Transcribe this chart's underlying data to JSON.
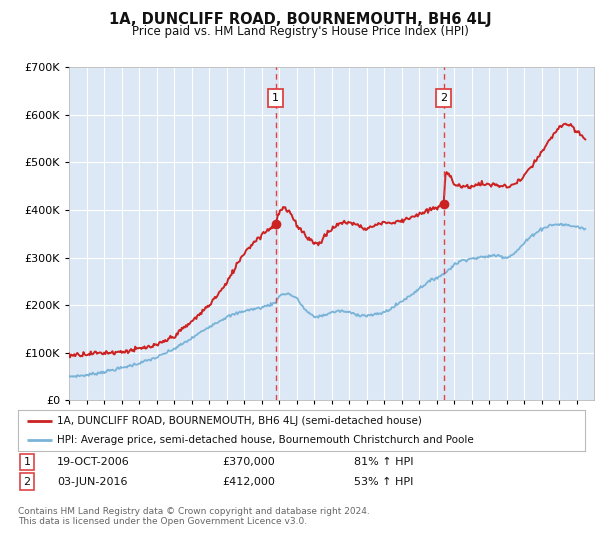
{
  "title": "1A, DUNCLIFF ROAD, BOURNEMOUTH, BH6 4LJ",
  "subtitle": "Price paid vs. HM Land Registry's House Price Index (HPI)",
  "background_color": "#ffffff",
  "plot_bg_color": "#dce8f5",
  "marker1_x": 2006.8,
  "marker1_price": 370000,
  "marker2_x": 2016.42,
  "marker2_price": 412000,
  "legend_line1": "1A, DUNCLIFF ROAD, BOURNEMOUTH, BH6 4LJ (semi-detached house)",
  "legend_line2": "HPI: Average price, semi-detached house, Bournemouth Christchurch and Poole",
  "table_row1": [
    "1",
    "19-OCT-2006",
    "£370,000",
    "81% ↑ HPI"
  ],
  "table_row2": [
    "2",
    "03-JUN-2016",
    "£412,000",
    "53% ↑ HPI"
  ],
  "footer": "Contains HM Land Registry data © Crown copyright and database right 2024.\nThis data is licensed under the Open Government Licence v3.0.",
  "xmin": 1995,
  "xmax": 2025,
  "ymin": 0,
  "ymax": 700000,
  "red_color": "#cc2222",
  "blue_color": "#7ab3d8",
  "dashed_color": "#dd4444"
}
